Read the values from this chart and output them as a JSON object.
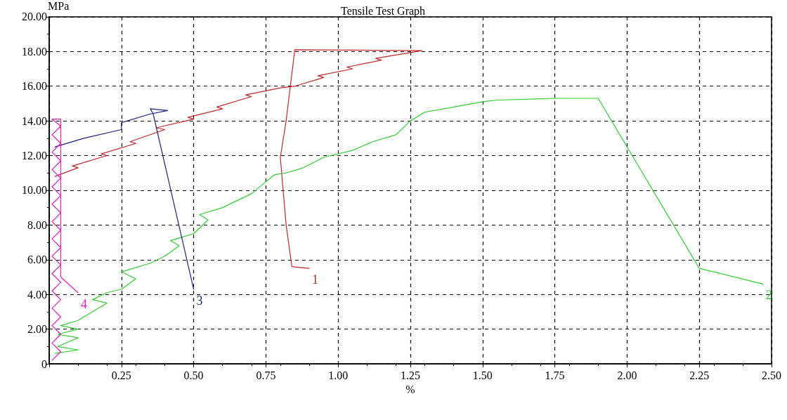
{
  "chart_data": {
    "type": "line",
    "title": "Tensile Test Graph",
    "xlabel": "%",
    "ylabel": "MPa",
    "xlim": [
      0,
      2.5
    ],
    "ylim": [
      0,
      20
    ],
    "xticks": [
      {
        "value": 0,
        "label": null
      },
      {
        "value": 0.25,
        "label": "0.25"
      },
      {
        "value": 0.5,
        "label": "0.50"
      },
      {
        "value": 0.75,
        "label": "0.75"
      },
      {
        "value": 1,
        "label": "1.00"
      },
      {
        "value": 1.25,
        "label": "1.25"
      },
      {
        "value": 1.5,
        "label": "1.50"
      },
      {
        "value": 1.75,
        "label": "1.75"
      },
      {
        "value": 2,
        "label": "2.00"
      },
      {
        "value": 2.25,
        "label": "2.25"
      },
      {
        "value": 2.5,
        "label": "2.50"
      }
    ],
    "yticks": [
      0,
      {
        "value": 2,
        "label": "2.00"
      },
      {
        "value": 4,
        "label": "4.00"
      },
      {
        "value": 6,
        "label": "6.00"
      },
      {
        "value": 8,
        "label": "8.00"
      },
      {
        "value": 10,
        "label": "10.00"
      },
      {
        "value": 12,
        "label": "12.00"
      },
      {
        "value": 14,
        "label": "14.00"
      },
      {
        "value": 16,
        "label": "16.00"
      },
      {
        "value": 18,
        "label": "18.00"
      },
      {
        "value": 20,
        "label": "20.00"
      }
    ],
    "grid": true,
    "marker": "none",
    "line_style": "solid",
    "series": [
      {
        "name": "1",
        "color": "#c0282a",
        "x": [
          0.02,
          0.1,
          0.08,
          0.2,
          0.18,
          0.3,
          0.28,
          0.4,
          0.37,
          0.5,
          0.48,
          0.6,
          0.58,
          0.7,
          0.68,
          0.8,
          0.85,
          0.95,
          0.93,
          1.05,
          1.03,
          1.15,
          1.13,
          1.29,
          0.85,
          0.82,
          0.8,
          0.82,
          0.84,
          0.9
        ],
        "values": [
          10.8,
          11.3,
          11.4,
          12.0,
          12.1,
          12.7,
          12.8,
          13.5,
          13.6,
          14.1,
          14.2,
          14.7,
          14.8,
          15.4,
          15.5,
          15.9,
          16.0,
          16.5,
          16.6,
          17.0,
          17.1,
          17.5,
          17.6,
          18.05,
          18.1,
          14.0,
          11.9,
          8.0,
          5.6,
          5.5
        ]
      },
      {
        "name": "2",
        "color": "#33cc33",
        "x": [
          0.02,
          0.1,
          0.03,
          0.1,
          0.03,
          0.1,
          0.04,
          0.1,
          0.2,
          0.15,
          0.2,
          0.25,
          0.3,
          0.25,
          0.35,
          0.4,
          0.45,
          0.42,
          0.5,
          0.55,
          0.52,
          0.6,
          0.7,
          0.75,
          0.78,
          0.82,
          0.88,
          0.95,
          1.05,
          1.12,
          1.2,
          1.25,
          1.3,
          1.4,
          1.5,
          1.55,
          1.75,
          1.9,
          2.25,
          2.47
        ],
        "values": [
          0.6,
          0.8,
          1.0,
          1.5,
          1.7,
          2.0,
          2.2,
          2.5,
          3.5,
          3.7,
          4.1,
          4.3,
          4.9,
          5.3,
          5.8,
          6.2,
          6.8,
          7.1,
          7.5,
          8.3,
          8.6,
          9.0,
          9.8,
          10.5,
          10.9,
          11.0,
          11.3,
          11.9,
          12.3,
          12.8,
          13.2,
          14.0,
          14.5,
          14.8,
          15.1,
          15.2,
          15.3,
          15.3,
          5.5,
          4.6
        ]
      },
      {
        "name": "3",
        "color": "#1a237e",
        "x": [
          0.02,
          0.12,
          0.25,
          0.25,
          0.35,
          0.41,
          0.35,
          0.36,
          0.5
        ],
        "values": [
          12.5,
          13.0,
          13.5,
          13.9,
          14.4,
          14.6,
          14.7,
          14.4,
          4.3
        ]
      },
      {
        "name": "4",
        "color": "#e020c0",
        "x": [
          0.01,
          0.04,
          0.01,
          0.04,
          0.01,
          0.04,
          0.01,
          0.04,
          0.01,
          0.04,
          0.01,
          0.04,
          0.01,
          0.04,
          0.01,
          0.04,
          0.01,
          0.04,
          0.01,
          0.04,
          0.01,
          0.04,
          0.01,
          0.04,
          0.01,
          0.04,
          0.01,
          0.04,
          0.01,
          0.04,
          0.04,
          0.1
        ],
        "values": [
          0.2,
          0.7,
          1.2,
          1.7,
          2.2,
          2.7,
          3.2,
          3.7,
          4.2,
          4.7,
          5.2,
          5.7,
          6.2,
          6.7,
          7.2,
          7.7,
          8.2,
          8.7,
          9.2,
          9.7,
          10.2,
          10.7,
          11.2,
          11.7,
          12.2,
          12.7,
          13.2,
          13.7,
          14.1,
          14.1,
          5.0,
          4.1
        ]
      }
    ]
  }
}
